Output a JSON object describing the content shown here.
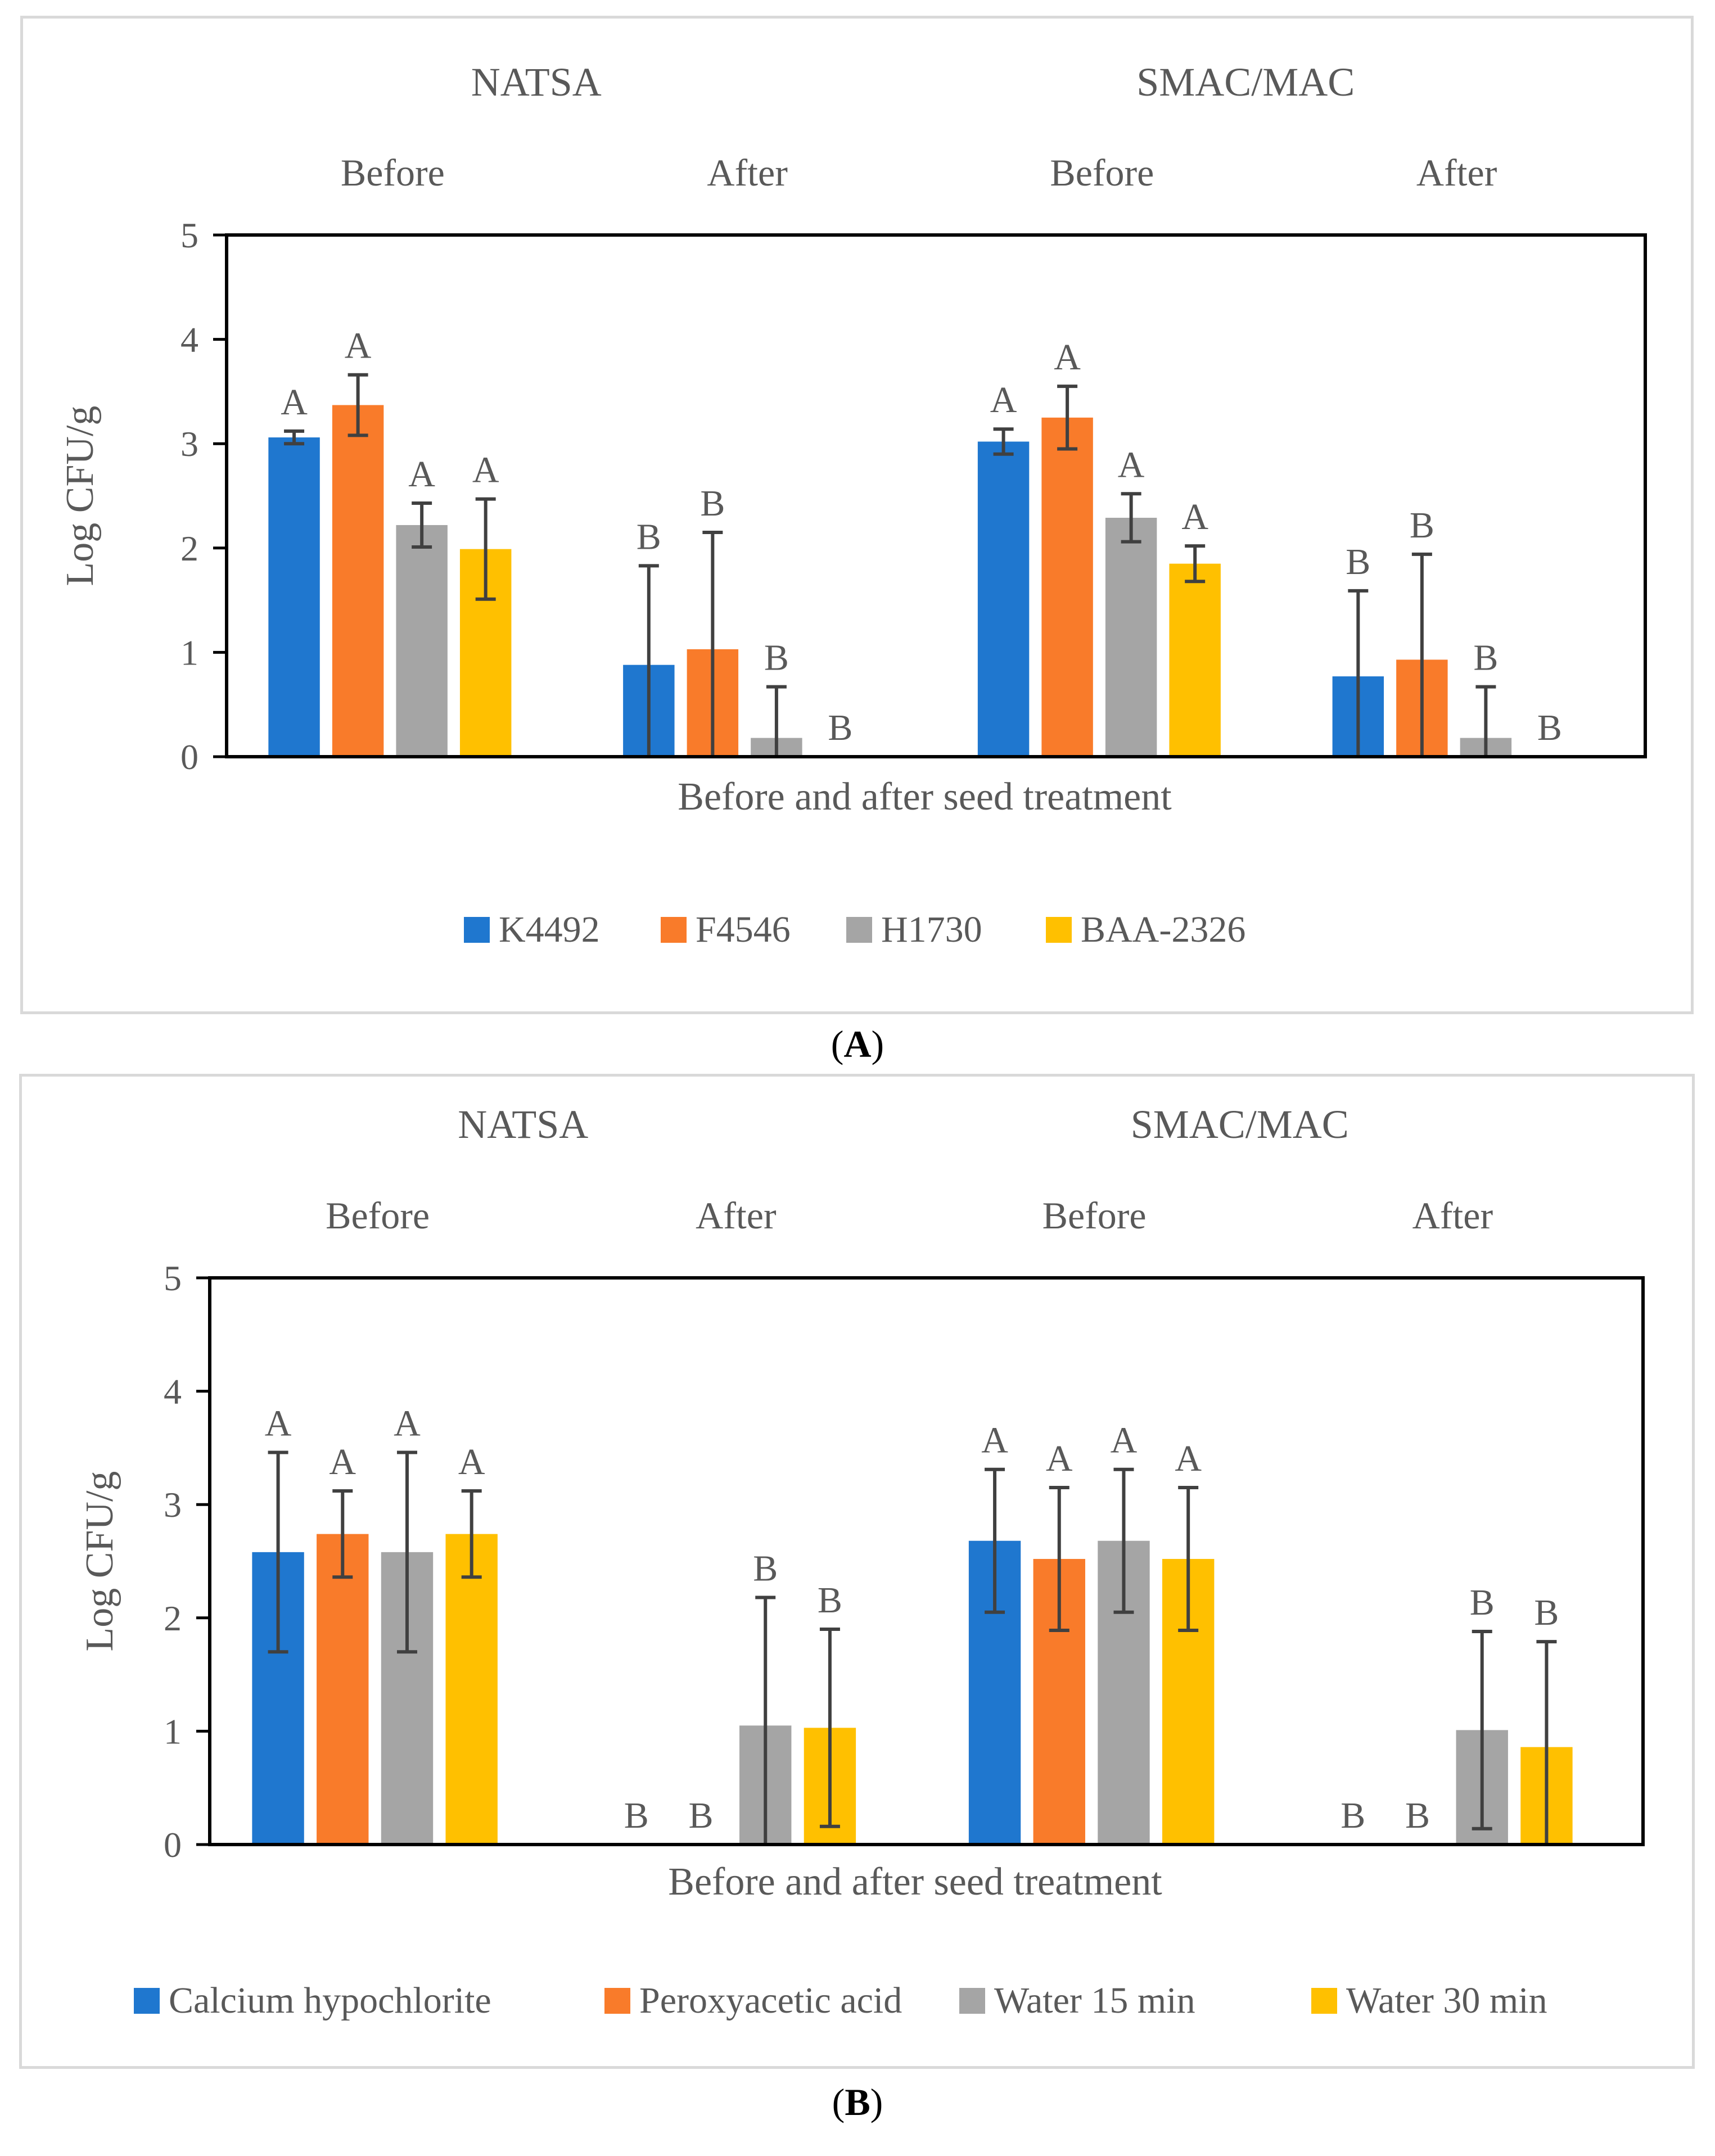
{
  "colors": [
    "#1f77cf",
    "#f97b2a",
    "#a5a5a5",
    "#ffc000"
  ],
  "captions": {
    "a_open": "(",
    "a_letter": "A",
    "a_close": ")",
    "b_open": "(",
    "b_letter": "B",
    "b_close": ")"
  },
  "chart_data": [
    {
      "type": "bar",
      "panel": "A",
      "group_labels": [
        "NATSA",
        "SMAC/MAC"
      ],
      "categories": [
        "Before",
        "After",
        "Before",
        "After"
      ],
      "xlabel": "Before and after seed treatment",
      "ylabel": "Log CFU/g",
      "ylim": [
        0,
        5
      ],
      "yticks": [
        "0",
        "1",
        "2",
        "3",
        "4",
        "5"
      ],
      "series": [
        {
          "name": "K4492",
          "values": [
            3.06,
            0.88,
            3.02,
            0.77
          ],
          "err": [
            0.06,
            0.95,
            0.12,
            0.82
          ],
          "letters": [
            "A",
            "B",
            "A",
            "B"
          ]
        },
        {
          "name": "F4546",
          "values": [
            3.37,
            1.03,
            3.25,
            0.93
          ],
          "err": [
            0.29,
            1.12,
            0.3,
            1.01
          ],
          "letters": [
            "A",
            "B",
            "A",
            "B"
          ]
        },
        {
          "name": "H1730",
          "values": [
            2.22,
            0.18,
            2.29,
            0.18
          ],
          "err": [
            0.21,
            0.49,
            0.23,
            0.49
          ],
          "letters": [
            "A",
            "B",
            "A",
            "B"
          ]
        },
        {
          "name": "BAA-2326",
          "values": [
            1.99,
            0.0,
            1.85,
            0.0
          ],
          "err": [
            0.48,
            0.0,
            0.17,
            0.0
          ],
          "letters": [
            "A",
            "B",
            "A",
            "B"
          ]
        }
      ]
    },
    {
      "type": "bar",
      "panel": "B",
      "group_labels": [
        "NATSA",
        "SMAC/MAC"
      ],
      "categories": [
        "Before",
        "After",
        "Before",
        "After"
      ],
      "xlabel": "Before and after seed treatment",
      "ylabel": "Log CFU/g",
      "ylim": [
        0,
        5
      ],
      "yticks": [
        "0",
        "1",
        "2",
        "3",
        "4",
        "5"
      ],
      "series": [
        {
          "name": "Calcium hypochlorite",
          "values": [
            2.58,
            0.0,
            2.68,
            0.0
          ],
          "err": [
            0.88,
            0.0,
            0.63,
            0.0
          ],
          "letters": [
            "A",
            "B",
            "A",
            "B"
          ]
        },
        {
          "name": "Peroxyacetic acid",
          "values": [
            2.74,
            0.0,
            2.52,
            0.0
          ],
          "err": [
            0.38,
            0.0,
            0.63,
            0.0
          ],
          "letters": [
            "A",
            "B",
            "A",
            "B"
          ]
        },
        {
          "name": "Water 15 min",
          "values": [
            2.58,
            1.05,
            2.68,
            1.01
          ],
          "err": [
            0.88,
            1.13,
            0.63,
            0.87
          ],
          "letters": [
            "A",
            "B",
            "A",
            "B"
          ]
        },
        {
          "name": "Water 30 min",
          "values": [
            2.74,
            1.03,
            2.52,
            0.86
          ],
          "err": [
            0.38,
            0.87,
            0.63,
            0.93
          ],
          "letters": [
            "A",
            "B",
            "A",
            "B"
          ]
        }
      ]
    }
  ]
}
